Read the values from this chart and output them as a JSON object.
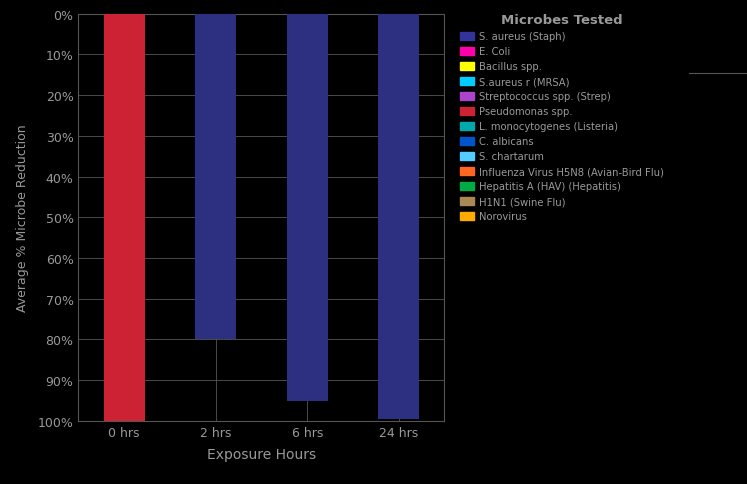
{
  "categories": [
    "0 hrs",
    "2 hrs",
    "6 hrs",
    "24 hrs"
  ],
  "values": [
    100,
    80,
    95,
    99.5
  ],
  "bar_colors": [
    "#cc2233",
    "#2d3080",
    "#2d3080",
    "#2d3080"
  ],
  "xlabel": "Exposure Hours",
  "ylabel": "Average % Microbe Reduction",
  "background_color": "#000000",
  "text_color": "#999999",
  "grid_color": "#555555",
  "ytick_labels": [
    "0%",
    "10%",
    "20%",
    "30%",
    "40%",
    "50%",
    "60%",
    "70%",
    "80%",
    "90%",
    "100%"
  ],
  "ytick_values": [
    0,
    10,
    20,
    30,
    40,
    50,
    60,
    70,
    80,
    90,
    100
  ],
  "legend_title": "Microbes Tested",
  "legend_items": [
    {
      "label": "S. aureus (Staph)",
      "color": "#333399"
    },
    {
      "label": "E. Coli",
      "color": "#ff00aa"
    },
    {
      "label": "Bacillus spp.",
      "color": "#ffff00"
    },
    {
      "label": "S.aureus r (MRSA)",
      "color": "#00ccff"
    },
    {
      "label": "Streptococcus spp. (Strep)",
      "color": "#aa44cc"
    },
    {
      "label": "Pseudomonas spp.",
      "color": "#cc2233"
    },
    {
      "label": "L. monocytogenes (Listeria)",
      "color": "#00aaaa"
    },
    {
      "label": "C. albicans",
      "color": "#0055cc"
    },
    {
      "label": "S. chartarum",
      "color": "#55ccff"
    },
    {
      "label": "Influenza Virus H5N8 (Avian-Bird Flu)",
      "color": "#ff6622"
    },
    {
      "label": "Hepatitis A (HAV) (Hepatitis)",
      "color": "#00aa44"
    },
    {
      "label": "H1N1 (Swine Flu)",
      "color": "#aa8855"
    },
    {
      "label": "Norovirus",
      "color": "#ffaa00"
    }
  ]
}
